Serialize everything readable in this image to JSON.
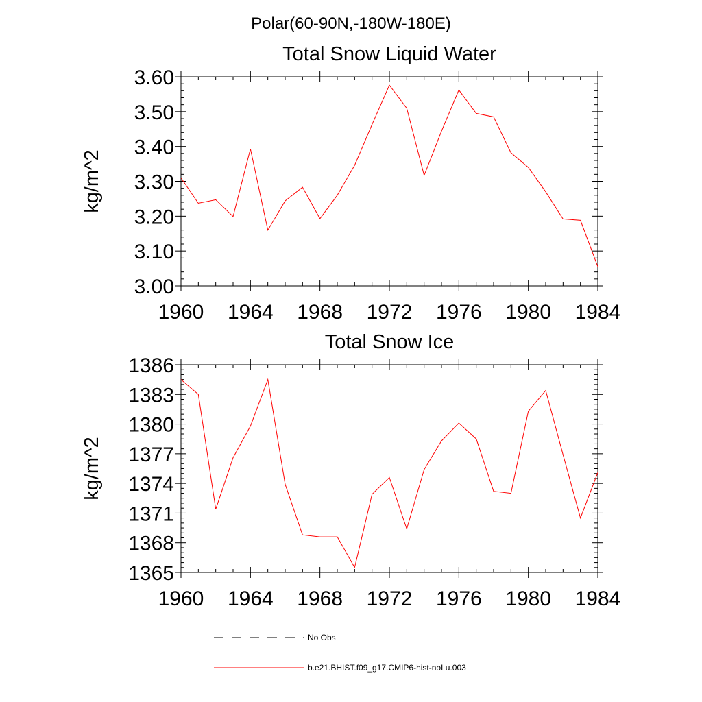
{
  "suptitle": "Polar(60-90N,-180W-180E)",
  "chart_data": [
    {
      "type": "line",
      "title": "Total Snow Liquid Water",
      "xlabel": "",
      "ylabel": "kg/m^2",
      "xlim": [
        1960,
        1984
      ],
      "ylim": [
        3.0,
        3.6
      ],
      "xticks": [
        "1960",
        "1964",
        "1968",
        "1972",
        "1976",
        "1980",
        "1984"
      ],
      "yticks": [
        "3.00",
        "3.10",
        "3.20",
        "3.30",
        "3.40",
        "3.50",
        "3.60"
      ],
      "grid": false,
      "x": [
        1960,
        1961,
        1962,
        1963,
        1964,
        1965,
        1966,
        1967,
        1968,
        1969,
        1970,
        1971,
        1972,
        1973,
        1974,
        1975,
        1976,
        1977,
        1978,
        1979,
        1980,
        1981,
        1982,
        1983,
        1984
      ],
      "series": [
        {
          "name": "b.e21.BHIST.f09_g17.CMIP6-hist-noLu.003",
          "color": "#ff0000",
          "values": [
            3.31,
            3.237,
            3.247,
            3.199,
            3.393,
            3.16,
            3.244,
            3.283,
            3.193,
            3.26,
            3.346,
            3.463,
            3.576,
            3.51,
            3.317,
            3.444,
            3.562,
            3.495,
            3.485,
            3.382,
            3.34,
            3.27,
            3.192,
            3.188,
            3.055
          ]
        }
      ]
    },
    {
      "type": "line",
      "title": "Total Snow Ice",
      "xlabel": "",
      "ylabel": "kg/m^2",
      "xlim": [
        1960,
        1984
      ],
      "ylim": [
        1365,
        1386
      ],
      "xticks": [
        "1960",
        "1964",
        "1968",
        "1972",
        "1976",
        "1980",
        "1984"
      ],
      "yticks": [
        "1365",
        "1368",
        "1371",
        "1374",
        "1377",
        "1380",
        "1383",
        "1386"
      ],
      "grid": false,
      "x": [
        1960,
        1961,
        1962,
        1963,
        1964,
        1965,
        1966,
        1967,
        1968,
        1969,
        1970,
        1971,
        1972,
        1973,
        1974,
        1975,
        1976,
        1977,
        1978,
        1979,
        1980,
        1981,
        1982,
        1983,
        1984
      ],
      "series": [
        {
          "name": "b.e21.BHIST.f09_g17.CMIP6-hist-noLu.003",
          "color": "#ff0000",
          "values": [
            1384.5,
            1383.0,
            1371.4,
            1376.6,
            1379.8,
            1384.5,
            1373.9,
            1368.8,
            1368.6,
            1368.6,
            1365.5,
            1372.9,
            1374.6,
            1369.4,
            1375.4,
            1378.3,
            1380.1,
            1378.5,
            1373.2,
            1373.0,
            1381.3,
            1383.4,
            1376.9,
            1370.5,
            1375.1
          ]
        }
      ]
    }
  ],
  "legend": {
    "placement": "bottom",
    "entries": [
      {
        "label": "No Obs",
        "style": "dashed",
        "color": "#000000"
      },
      {
        "label": "b.e21.BHIST.f09_g17.CMIP6-hist-noLu.003",
        "style": "solid",
        "color": "#ff0000"
      }
    ]
  }
}
